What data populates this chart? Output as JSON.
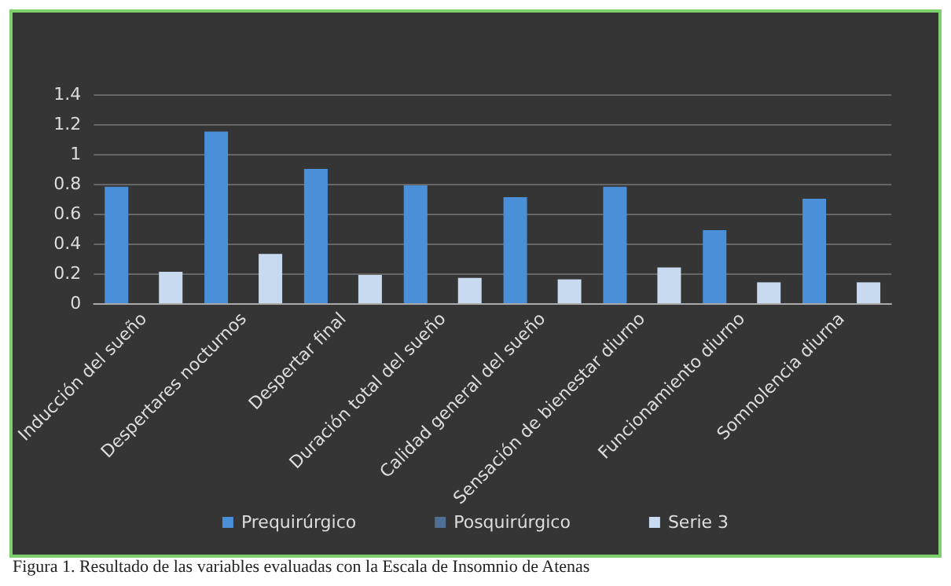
{
  "chart_data": {
    "type": "bar",
    "categories": [
      "Inducción del sueño",
      "Despertares nocturnos",
      "Despertar final",
      "Duración total del sueño",
      "Calidad general del sueño",
      "Sensación de bienestar diurno",
      "Funcionamiento diurno",
      "Somnolencia diurna"
    ],
    "series": [
      {
        "name": "Prequirúrgico",
        "color": "#4a90d9",
        "values": [
          0.78,
          1.15,
          0.9,
          0.79,
          0.71,
          0.78,
          0.49,
          0.7
        ]
      },
      {
        "name": "Posquirúrgico",
        "color": "#4f6f94",
        "values": [
          null,
          null,
          null,
          null,
          null,
          null,
          null,
          null
        ]
      },
      {
        "name": "Serie 3",
        "color": "#c8daf0",
        "values": [
          0.21,
          0.33,
          0.19,
          0.17,
          0.16,
          0.24,
          0.14,
          0.14
        ]
      }
    ],
    "ylim": [
      0,
      1.4
    ],
    "yticks": [
      0,
      {
        "value": 0.2,
        "label": "0.2"
      },
      {
        "value": 0.4,
        "label": "0.4"
      },
      {
        "value": 0.6,
        "label": "0.6"
      },
      {
        "value": 0.8,
        "label": "0.8"
      },
      1,
      {
        "value": 1.2,
        "label": "1.2"
      },
      {
        "value": 1.4,
        "label": "1.4"
      }
    ],
    "grid": "y",
    "legend": "bottom",
    "annotations": [
      "Figura 1. Resultado de las variables evaluadas con la Escala de Insomnio de Atenas"
    ]
  }
}
